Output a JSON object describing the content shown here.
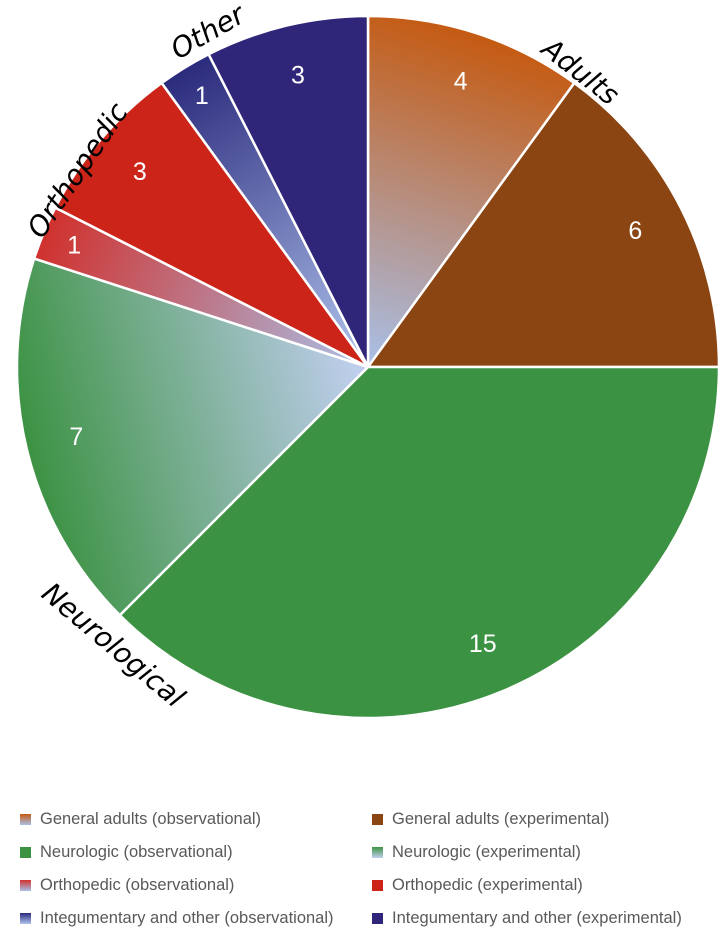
{
  "chart_data": {
    "type": "pie",
    "start_angle_deg": 0,
    "direction": "clockwise",
    "slices": [
      {
        "name": "General adults (observational)",
        "value": 4,
        "label": "4",
        "color": "#c55a11",
        "color_end": "#a9c0e8",
        "gradient": true
      },
      {
        "name": "General adults (experimental)",
        "value": 6,
        "label": "6",
        "color": "#8b4513",
        "gradient": false
      },
      {
        "name": "Neurologic (observational)",
        "value": 15,
        "label": "15",
        "color": "#3c9243",
        "gradient": false
      },
      {
        "name": "Neurologic (experimental)",
        "value": 7,
        "label": "7",
        "color": "#3c9243",
        "color_end": "#c3d0f2",
        "gradient": true
      },
      {
        "name": "Orthopedic (observational)",
        "value": 1,
        "label": "1",
        "color": "#d0312d",
        "color_end": "#a9c0e8",
        "gradient": true
      },
      {
        "name": "Orthopedic (experimental)",
        "value": 3,
        "label": "3",
        "color": "#cc2418",
        "gradient": false
      },
      {
        "name": "Integumentary and other (observational)",
        "value": 1,
        "label": "1",
        "color": "#2b2a7c",
        "color_end": "#b0c4ee",
        "gradient": true
      },
      {
        "name": "Integumentary and other (experimental)",
        "value": 3,
        "label": "3",
        "color": "#2f2579",
        "gradient": false
      }
    ],
    "group_labels": [
      "Adults",
      "Neurological",
      "Orthopedic",
      "Other"
    ]
  }
}
